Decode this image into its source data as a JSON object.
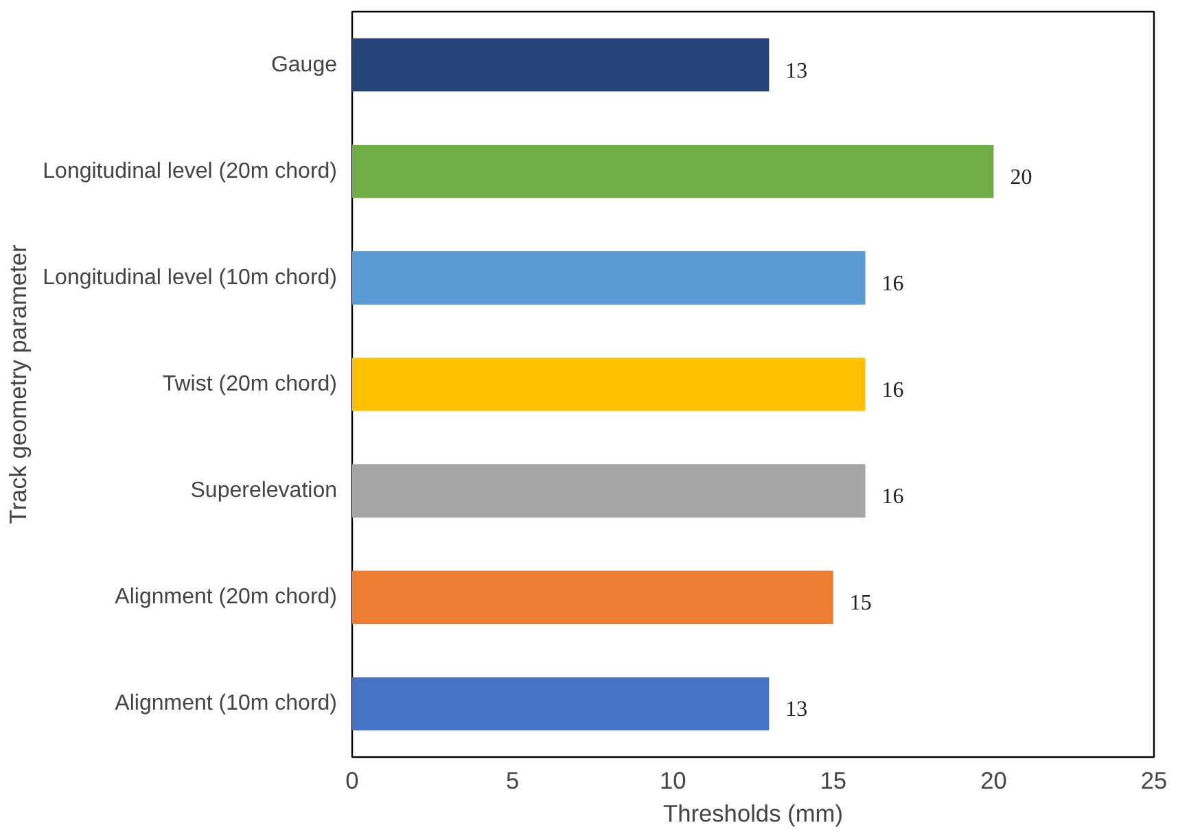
{
  "chart_data": {
    "type": "bar",
    "orientation": "horizontal",
    "categories": [
      "Gauge",
      "Longitudinal level (20m chord)",
      "Longitudinal level (10m chord)",
      "Twist (20m chord)",
      "Superelevation",
      "Alignment (20m chord)",
      "Alignment (10m chord)"
    ],
    "values": [
      13,
      20,
      16,
      16,
      16,
      15,
      13
    ],
    "colors": [
      "#264478",
      "#70ad47",
      "#5b9bd5",
      "#ffc000",
      "#a5a5a5",
      "#ed7d31",
      "#4472c4"
    ],
    "xlim": [
      0,
      25
    ],
    "xticks": [
      0,
      5,
      10,
      15,
      20,
      25
    ],
    "xlabel": "Thresholds (mm)",
    "ylabel": "Track geometry parameter",
    "data_labels": true
  }
}
